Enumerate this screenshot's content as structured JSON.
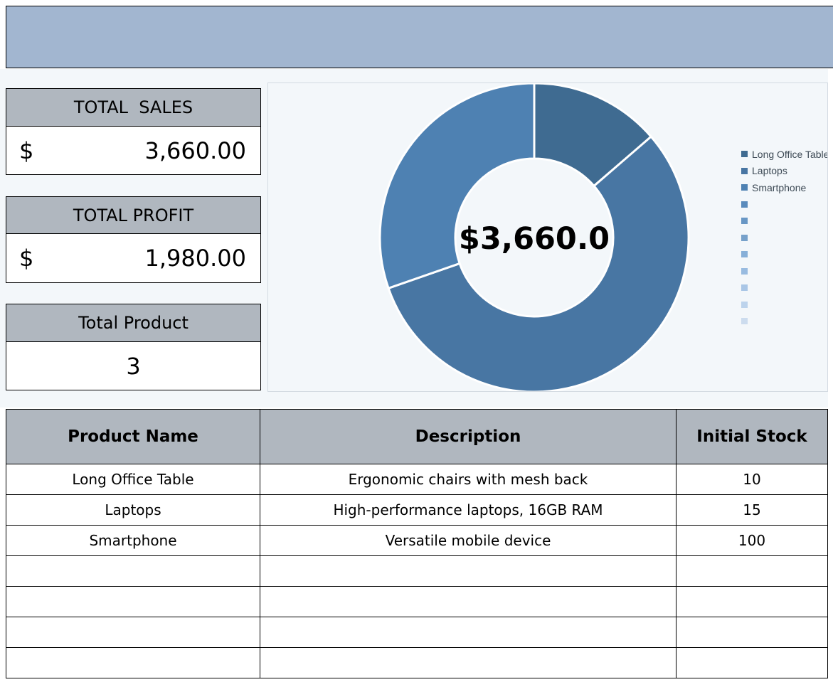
{
  "kpis": {
    "total_sales": {
      "label": "TOTAL  SALES",
      "currency": "$",
      "value": "3,660.00"
    },
    "total_profit": {
      "label": "TOTAL PROFIT",
      "currency": "$",
      "value": "1,980.00"
    },
    "total_product": {
      "label": "Total Product",
      "value": "3"
    }
  },
  "chart_data": {
    "type": "pie",
    "donut": true,
    "center_label": "$3,660.0",
    "categories": [
      "Long Office Table",
      "Laptops",
      "Smartphone",
      "",
      "",
      "",
      "",
      "",
      "",
      "",
      ""
    ],
    "values": [
      500,
      2050,
      1110,
      0,
      0,
      0,
      0,
      0,
      0,
      0,
      0
    ],
    "colors": [
      "#3f6b91",
      "#4876a3",
      "#4e81b2",
      "#5a8bbc",
      "#6897c5",
      "#76a1ca",
      "#86afd8",
      "#98bbe0",
      "#a9c6e6",
      "#bcd3ec",
      "#ccdcee"
    ],
    "legend_position": "right",
    "title": ""
  },
  "table": {
    "headers": [
      "Product Name",
      "Description",
      "Initial Stock"
    ],
    "rows": [
      [
        "Long Office Table",
        "Ergonomic chairs with mesh back",
        "10"
      ],
      [
        "Laptops",
        "High-performance laptops, 16GB RAM",
        "15"
      ],
      [
        "Smartphone",
        "Versatile mobile device",
        "100"
      ],
      [
        "",
        "",
        ""
      ],
      [
        "",
        "",
        ""
      ],
      [
        "",
        "",
        ""
      ],
      [
        "",
        "",
        ""
      ]
    ]
  }
}
